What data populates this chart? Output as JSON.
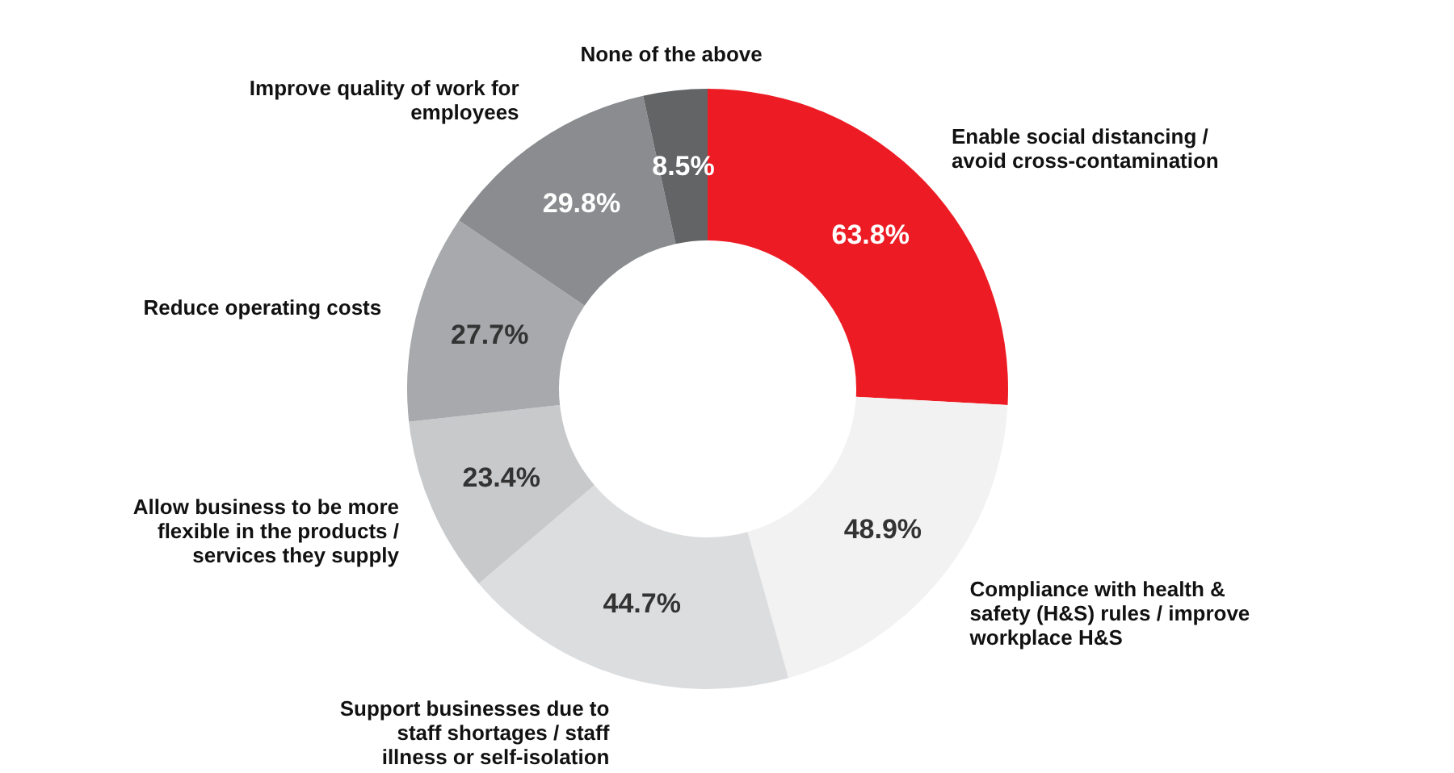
{
  "chart_data": {
    "type": "donut",
    "categories": [
      "Enable social distancing / avoid cross-contamination",
      "Compliance with health & safety (H&S) rules / improve workplace H&S",
      "Support businesses due to staff shortages / staff illness or self-isolation",
      "Allow business to be more flexible in the products / services they supply",
      "Reduce operating costs",
      "Improve quality of work for employees",
      "None of the above"
    ],
    "values": [
      63.8,
      48.9,
      44.7,
      23.4,
      27.7,
      29.8,
      8.5
    ],
    "value_labels": [
      "63.8%",
      "48.9%",
      "44.7%",
      "23.4%",
      "27.7%",
      "29.8%",
      "8.5%"
    ],
    "colors": [
      "#ed1c24",
      "#f2f2f2",
      "#dcdddf",
      "#c8c9cb",
      "#a7a9ac",
      "#8a8c8f",
      "#636466"
    ],
    "legend": false
  }
}
